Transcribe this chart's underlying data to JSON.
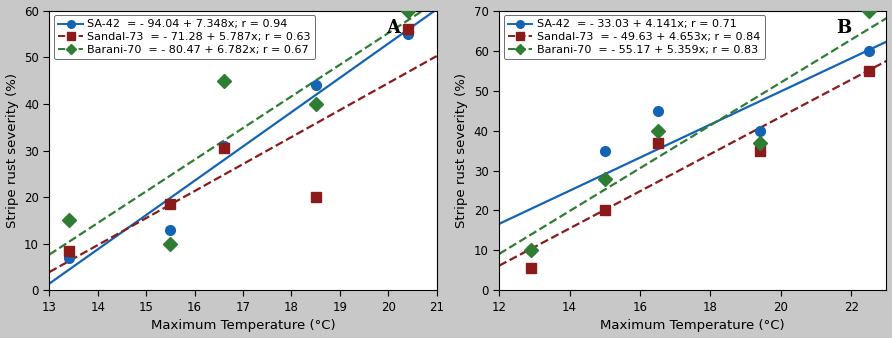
{
  "panel_A": {
    "label": "A",
    "xlim": [
      13,
      21
    ],
    "ylim": [
      0,
      60
    ],
    "xticks": [
      13,
      14,
      15,
      16,
      17,
      18,
      19,
      20,
      21
    ],
    "yticks": [
      0,
      10,
      20,
      30,
      40,
      50,
      60
    ],
    "xlabel": "Maximum Temperature (°C)",
    "ylabel": "Stripe rust severity (%)",
    "series": [
      {
        "name": "SA-42",
        "eq": "  = - 94.04 + 7.348x; r = 0.94",
        "intercept": -94.04,
        "slope": 7.348,
        "color": "#1464b4",
        "linestyle": "solid",
        "marker": "o",
        "x_data": [
          13.4,
          15.5,
          16.6,
          18.5,
          20.4
        ],
        "y_data": [
          7,
          13,
          31,
          44,
          55
        ]
      },
      {
        "name": "Sandal-73",
        "eq": "  = - 71.28 + 5.787x; r = 0.63",
        "intercept": -71.28,
        "slope": 5.787,
        "color": "#8b1a1a",
        "linestyle": "dashed",
        "marker": "s",
        "x_data": [
          13.4,
          15.5,
          16.6,
          18.5,
          20.4
        ],
        "y_data": [
          8.5,
          18.5,
          30.5,
          20,
          56
        ]
      },
      {
        "name": "Barani-70",
        "eq": "  = - 80.47 + 6.782x; r = 0.67",
        "intercept": -80.47,
        "slope": 6.782,
        "color": "#2e7d32",
        "linestyle": "dashed",
        "marker": "D",
        "x_data": [
          13.4,
          15.5,
          16.6,
          18.5,
          20.4
        ],
        "y_data": [
          15,
          10,
          45,
          40,
          60
        ]
      }
    ]
  },
  "panel_B": {
    "label": "B",
    "xlim": [
      12,
      23
    ],
    "ylim": [
      0,
      70
    ],
    "xticks": [
      12,
      14,
      16,
      18,
      20,
      22
    ],
    "yticks": [
      0,
      10,
      20,
      30,
      40,
      50,
      60,
      70
    ],
    "xlabel": "Maximum Temperature (°C)",
    "ylabel": "Stripe rust severity (%)",
    "series": [
      {
        "name": "SA-42",
        "eq": "  = - 33.03 + 4.141x; r = 0.71",
        "intercept": -33.03,
        "slope": 4.141,
        "color": "#1464b4",
        "linestyle": "solid",
        "marker": "o",
        "x_data": [
          12.9,
          15.0,
          16.5,
          19.4,
          22.5
        ],
        "y_data": [
          10,
          35,
          45,
          40,
          60
        ]
      },
      {
        "name": "Sandal-73",
        "eq": "  = - 49.63 + 4.653x; r = 0.84",
        "intercept": -49.63,
        "slope": 4.653,
        "color": "#8b1a1a",
        "linestyle": "dashed",
        "marker": "s",
        "x_data": [
          12.9,
          15.0,
          16.5,
          19.4,
          22.5
        ],
        "y_data": [
          5.5,
          20,
          37,
          35,
          55
        ]
      },
      {
        "name": "Barani-70",
        "eq": "  = - 55.17 + 5.359x; r = 0.83",
        "intercept": -55.17,
        "slope": 5.359,
        "color": "#2e7d32",
        "linestyle": "dashed",
        "marker": "D",
        "x_data": [
          12.9,
          15.0,
          16.5,
          19.4,
          22.5
        ],
        "y_data": [
          10,
          28,
          40,
          37,
          70
        ]
      }
    ]
  },
  "bg_color": "#c8c8c8",
  "plot_bg_color": "#ffffff",
  "tick_fontsize": 8.5,
  "label_fontsize": 9.5,
  "legend_fontsize": 8,
  "marker_size": 7,
  "linewidth": 1.6
}
